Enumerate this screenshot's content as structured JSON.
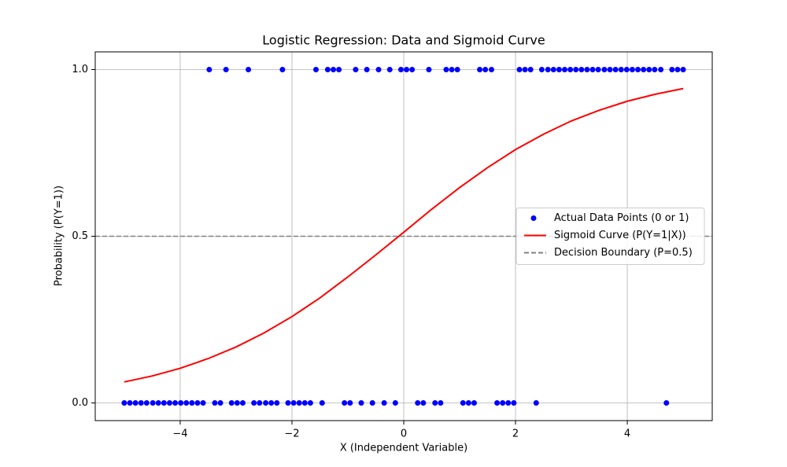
{
  "chart_data": {
    "type": "combo",
    "title": "Logistic Regression: Data and Sigmoid Curve",
    "x_label": "X (Independent Variable)",
    "y_label": "Probability (P(Y=1))",
    "xlim": [
      -5.52,
      5.52
    ],
    "ylim": [
      -0.053,
      1.053
    ],
    "xticks": [
      {
        "value": -4,
        "label": "−4"
      },
      {
        "value": -2,
        "label": "−2"
      },
      0,
      2,
      4
    ],
    "yticks": [
      {
        "value": 0,
        "label": "0.0"
      },
      {
        "value": 0.5,
        "label": "0.5"
      },
      {
        "value": 1,
        "label": "1.0"
      }
    ],
    "grid": true,
    "legend_loc": "center right",
    "series": [
      {
        "name": "Actual Data Points (0 or 1)",
        "type": "scatter",
        "color": "#0000ff",
        "x": [
          -5.0,
          -4.9,
          -4.8,
          -4.7,
          -4.6,
          -4.49,
          -4.39,
          -4.29,
          -4.19,
          -4.09,
          -3.99,
          -3.89,
          -3.79,
          -3.69,
          -3.59,
          -3.48,
          -3.38,
          -3.28,
          -3.18,
          -3.08,
          -2.98,
          -2.88,
          -2.78,
          -2.68,
          -2.58,
          -2.47,
          -2.37,
          -2.27,
          -2.17,
          -2.07,
          -1.97,
          -1.87,
          -1.77,
          -1.67,
          -1.57,
          -1.46,
          -1.36,
          -1.26,
          -1.16,
          -1.06,
          -0.96,
          -0.86,
          -0.76,
          -0.66,
          -0.56,
          -0.45,
          -0.35,
          -0.25,
          -0.15,
          -0.05,
          0.05,
          0.15,
          0.25,
          0.35,
          0.45,
          0.56,
          0.66,
          0.76,
          0.86,
          0.96,
          1.06,
          1.16,
          1.26,
          1.36,
          1.46,
          1.57,
          1.67,
          1.77,
          1.87,
          1.97,
          2.07,
          2.17,
          2.27,
          2.37,
          2.47,
          2.58,
          2.68,
          2.78,
          2.88,
          2.98,
          3.08,
          3.18,
          3.28,
          3.38,
          3.48,
          3.59,
          3.69,
          3.79,
          3.89,
          3.99,
          4.09,
          4.19,
          4.29,
          4.39,
          4.49,
          4.6,
          4.7,
          4.8,
          4.9,
          5.0
        ],
        "values": [
          0,
          0,
          0,
          0,
          0,
          0,
          0,
          0,
          0,
          0,
          0,
          0,
          0,
          0,
          0,
          1,
          0,
          0,
          1,
          0,
          0,
          0,
          1,
          0,
          0,
          0,
          0,
          0,
          1,
          0,
          0,
          0,
          0,
          0,
          1,
          0,
          1,
          1,
          1,
          0,
          0,
          1,
          0,
          1,
          0,
          1,
          0,
          1,
          0,
          1,
          1,
          1,
          0,
          0,
          1,
          0,
          0,
          1,
          1,
          1,
          0,
          0,
          0,
          1,
          1,
          1,
          0,
          0,
          0,
          0,
          1,
          1,
          1,
          0,
          1,
          1,
          1,
          1,
          1,
          1,
          1,
          1,
          1,
          1,
          1,
          1,
          1,
          1,
          1,
          1,
          1,
          1,
          1,
          1,
          1,
          1,
          0,
          1,
          1,
          1
        ]
      },
      {
        "name": "Sigmoid Curve (P(Y=1|X))",
        "type": "line",
        "color": "#ff0000",
        "x": [
          -5,
          -4.5,
          -4,
          -3.5,
          -3,
          -2.5,
          -2,
          -1.5,
          -1,
          -0.5,
          0,
          0.5,
          1,
          1.5,
          2,
          2.5,
          3,
          3.5,
          4,
          4.5,
          5
        ],
        "values": [
          0.063,
          0.081,
          0.104,
          0.133,
          0.168,
          0.21,
          0.259,
          0.315,
          0.378,
          0.444,
          0.512,
          0.581,
          0.646,
          0.706,
          0.76,
          0.806,
          0.846,
          0.878,
          0.905,
          0.926,
          0.943
        ]
      },
      {
        "name": "Decision Boundary (P=0.5)",
        "type": "hline",
        "color": "#808080",
        "values": [
          0.5
        ]
      }
    ]
  }
}
